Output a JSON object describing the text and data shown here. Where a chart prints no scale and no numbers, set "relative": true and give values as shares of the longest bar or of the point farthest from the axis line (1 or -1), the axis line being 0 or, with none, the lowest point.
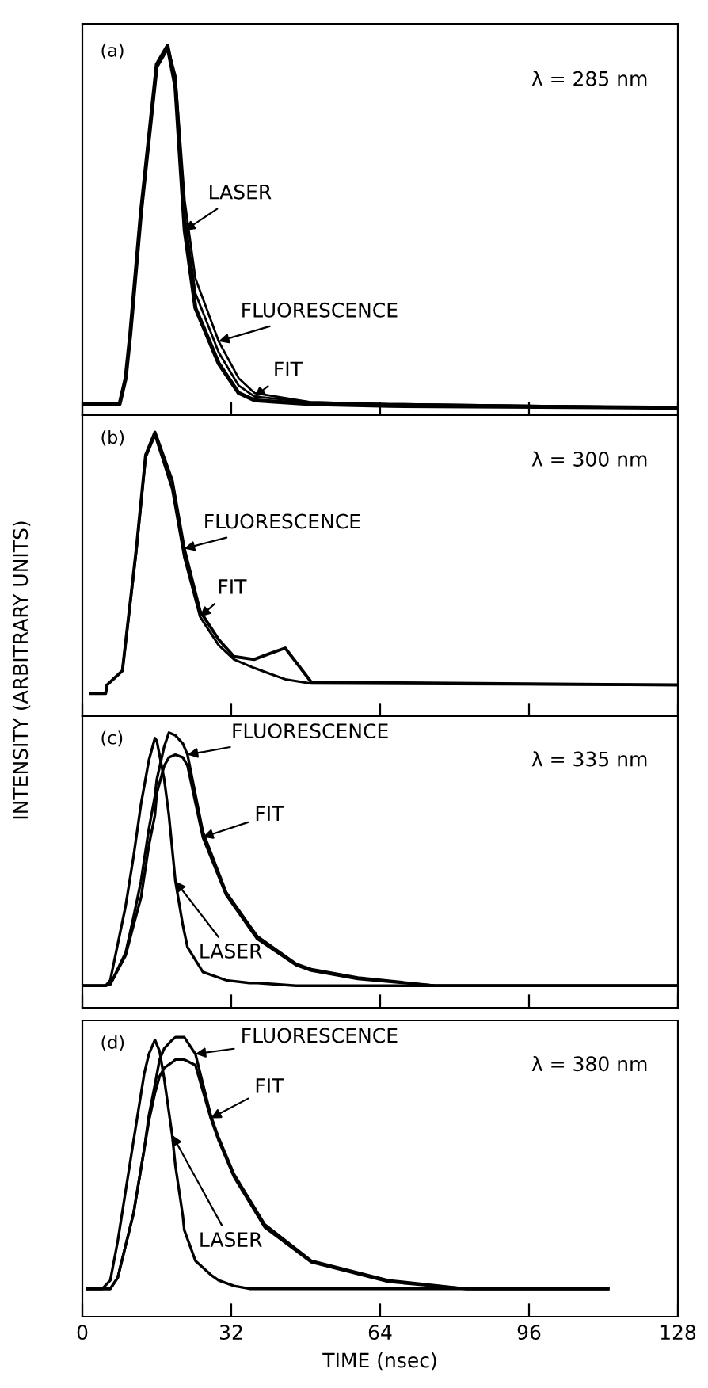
{
  "chart_data": [
    {
      "type": "line",
      "relative": true,
      "ylabel": "INTENSITY (ARBITRARY UNITS)",
      "annotations": [
        "(a)",
        "λ = 285 nm"
      ],
      "xlim": [
        0,
        128
      ],
      "xticks": [
        0,
        32,
        64,
        96,
        128
      ],
      "tick_labels": false,
      "grid": false,
      "legend": false,
      "x": [
        0,
        8,
        9.3,
        10.3,
        12.6,
        16,
        18.3,
        20,
        22,
        24.3,
        29.3,
        33.6,
        37,
        49,
        66,
        128
      ],
      "series": [
        {
          "name": "LASER",
          "color": "#000000",
          "values": [
            0.03,
            0.03,
            0.1,
            0.22,
            0.55,
            0.95,
            1,
            0.89,
            0.5,
            0.29,
            0.14,
            0.06,
            0.04,
            0.03,
            0.025,
            0.02
          ]
        },
        {
          "name": "FLUORESCENCE",
          "color": "#000000",
          "values": [
            0.03,
            0.03,
            0.1,
            0.22,
            0.55,
            0.95,
            1,
            0.92,
            0.58,
            0.37,
            0.2,
            0.1,
            0.06,
            0.035,
            0.03,
            0.02
          ]
        },
        {
          "name": "FIT",
          "color": "#000000",
          "values": [
            0.03,
            0.03,
            0.1,
            0.21,
            0.54,
            0.94,
            0.99,
            0.905,
            0.54,
            0.33,
            0.17,
            0.08,
            0.05,
            0.035,
            0.03,
            0.02
          ]
        }
      ]
    },
    {
      "type": "line",
      "relative": true,
      "annotations": [
        "(b)",
        "λ = 300 nm"
      ],
      "xlim": [
        0,
        128
      ],
      "xticks": [
        0,
        32,
        64,
        96,
        128
      ],
      "tick_labels": false,
      "grid": false,
      "legend": false,
      "x": [
        1.7,
        5,
        5.3,
        8.6,
        11.6,
        13.6,
        15.6,
        19.3,
        21.9,
        25.3,
        29.3,
        32.6,
        36.9,
        40.2,
        43.6,
        49.2,
        128
      ],
      "series": [
        {
          "name": "FLUORESCENCE",
          "color": "#000000",
          "values": [
            0.08,
            0.08,
            0.11,
            0.16,
            0.59,
            0.92,
            1,
            0.83,
            0.59,
            0.37,
            0.27,
            0.21,
            0.2,
            0.22,
            0.24,
            0.12,
            0.11
          ]
        },
        {
          "name": "FIT",
          "color": "#000000",
          "values": [
            0.08,
            0.08,
            0.11,
            0.16,
            0.58,
            0.91,
            0.99,
            0.8,
            0.56,
            0.35,
            0.25,
            0.2,
            0.17,
            0.15,
            0.13,
            0.115,
            0.11
          ]
        }
      ]
    },
    {
      "type": "line",
      "relative": true,
      "annotations": [
        "(c)",
        "λ = 335 nm"
      ],
      "xlim": [
        0,
        128
      ],
      "xticks": [
        0,
        32,
        64,
        96,
        128
      ],
      "tick_labels": false,
      "grid": false,
      "legend": false,
      "x": [
        0,
        5,
        6,
        9.3,
        11,
        12.6,
        14.3,
        15.6,
        16,
        17.6,
        18.6,
        20,
        21.6,
        22.6,
        25.9,
        30.9,
        35.9,
        37.6,
        45.9,
        49.2,
        59.2,
        75.8,
        128
      ],
      "series": [
        {
          "name": "FLUORESCENCE",
          "color": "#000000",
          "values": [
            0.08,
            0.08,
            0.085,
            0.2,
            0.33,
            0.46,
            0.65,
            0.77,
            0.83,
            0.95,
            1,
            0.99,
            0.96,
            0.92,
            0.64,
            0.42,
            0.3,
            0.26,
            0.16,
            0.14,
            0.11,
            0.08,
            0.08
          ]
        },
        {
          "name": "FIT",
          "color": "#000000",
          "values": [
            0.08,
            0.08,
            0.085,
            0.19,
            0.3,
            0.4,
            0.59,
            0.7,
            0.78,
            0.88,
            0.91,
            0.92,
            0.91,
            0.88,
            0.62,
            0.41,
            0.29,
            0.25,
            0.155,
            0.135,
            0.105,
            0.08,
            0.08
          ]
        },
        {
          "name": "LASER",
          "color": "#000000",
          "values": [
            0.08,
            0.08,
            0.1,
            0.37,
            0.55,
            0.74,
            0.9,
            0.98,
            0.97,
            0.83,
            0.7,
            0.46,
            0.3,
            0.22,
            0.13,
            0.1,
            0.09,
            0.09,
            0.08,
            0.08,
            0.08,
            0.08,
            0.08
          ]
        }
      ]
    },
    {
      "type": "line",
      "relative": true,
      "xlabel": "TIME (nsec)",
      "annotations": [
        "(d)",
        "λ = 380 nm"
      ],
      "xlim": [
        0,
        128
      ],
      "xticks": [
        0,
        32,
        64,
        96,
        128
      ],
      "tick_labels": "x",
      "grid": false,
      "legend": false,
      "x": [
        1,
        4.3,
        6,
        7.6,
        11,
        13.3,
        14.3,
        15.6,
        16.6,
        17.6,
        19.3,
        20,
        21.6,
        21.9,
        24.3,
        27.6,
        29.3,
        32.6,
        35.9,
        39.2,
        49.2,
        65.8,
        82.4,
        113
      ],
      "series": [
        {
          "name": "FLUORESCENCE",
          "color": "#000000",
          "values": [
            0.1,
            0.1,
            0.1,
            0.14,
            0.37,
            0.6,
            0.72,
            0.83,
            0.92,
            0.96,
            0.99,
            1,
            1,
            1,
            0.94,
            0.72,
            0.64,
            0.51,
            0.42,
            0.33,
            0.2,
            0.13,
            0.1,
            0.1
          ]
        },
        {
          "name": "FIT",
          "color": "#000000",
          "values": [
            0.1,
            0.1,
            0.1,
            0.14,
            0.37,
            0.6,
            0.7,
            0.8,
            0.86,
            0.89,
            0.91,
            0.92,
            0.92,
            0.92,
            0.9,
            0.71,
            0.63,
            0.5,
            0.41,
            0.32,
            0.195,
            0.125,
            0.1,
            0.1
          ]
        },
        {
          "name": "LASER",
          "color": "#000000",
          "values": [
            0.1,
            0.1,
            0.13,
            0.27,
            0.63,
            0.87,
            0.94,
            0.99,
            0.95,
            0.85,
            0.65,
            0.54,
            0.36,
            0.31,
            0.2,
            0.15,
            0.13,
            0.11,
            0.1,
            0.1,
            0.1,
            0.1,
            0.1,
            0.1
          ]
        }
      ]
    }
  ]
}
